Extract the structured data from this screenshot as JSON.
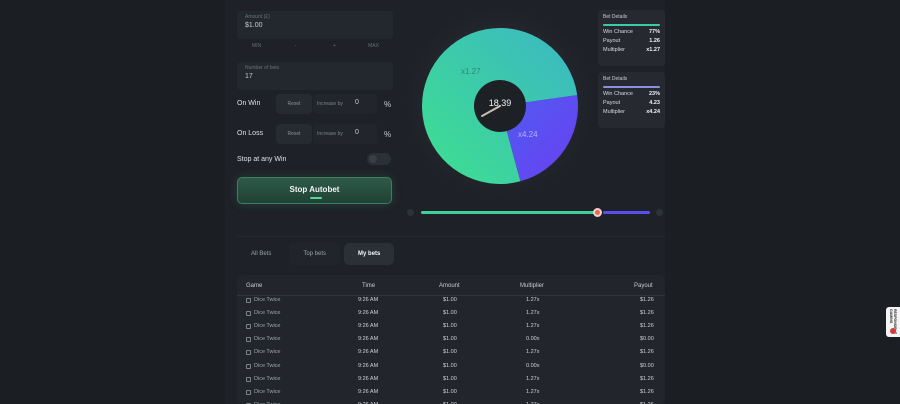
{
  "controls": {
    "bet_amount": {
      "label": "Amount (£)",
      "value": "$1.00"
    },
    "mini_buttons": [
      "MIN",
      "-",
      "+",
      "MAX"
    ],
    "number_of_bets": {
      "label": "Number of bets",
      "value": "17"
    },
    "on_win": {
      "label": "On Win",
      "reset_label": "Reset",
      "increase_label": "Increase by",
      "value": "0",
      "unit": "%"
    },
    "on_loss": {
      "label": "On Loss",
      "reset_label": "Reset",
      "increase_label": "Increase by",
      "value": "0",
      "unit": "%"
    },
    "stop_at_any_win": {
      "label": "Stop at any Win",
      "enabled": false
    },
    "stop_button_label": "Stop Autobet"
  },
  "pie": {
    "center_value": "18.39",
    "slices": [
      {
        "label": "x1.27",
        "fraction": 0.77,
        "color": "#3fd19a"
      },
      {
        "label": "x4.24",
        "fraction": 0.23,
        "color": "#5b4ef0"
      }
    ]
  },
  "bet_details": [
    {
      "title": "Bet Details",
      "accent": "#3fc9a8",
      "rows": [
        {
          "k": "Win Chance",
          "v": "77%"
        },
        {
          "k": "Payout",
          "v": "1.26"
        },
        {
          "k": "Multiplier",
          "v": "x1.27"
        }
      ]
    },
    {
      "title": "Bet Details",
      "accent": "#8a8fe0",
      "rows": [
        {
          "k": "Win Chance",
          "v": "23%"
        },
        {
          "k": "Payout",
          "v": "4.23"
        },
        {
          "k": "Multiplier",
          "v": "x4.24"
        }
      ]
    }
  ],
  "slider": {
    "value": 0.77,
    "left_color": "#3fd19a",
    "right_color": "#5b4ef0",
    "thumb_color": "#e96a57"
  },
  "tabs": [
    {
      "label": "All Bets",
      "active": false
    },
    {
      "label": "Top bets",
      "active": false
    },
    {
      "label": "My bets",
      "active": true
    }
  ],
  "table": {
    "columns": [
      "Game",
      "Time",
      "Amount",
      "Multiplier",
      "Payout"
    ],
    "rows": [
      {
        "game": "Dice Twice",
        "time": "9:26 AM",
        "amount": "$1.00",
        "multiplier": "1.27x",
        "payout": "$1.26"
      },
      {
        "game": "Dice Twice",
        "time": "9:26 AM",
        "amount": "$1.00",
        "multiplier": "1.27x",
        "payout": "$1.26"
      },
      {
        "game": "Dice Twice",
        "time": "9:26 AM",
        "amount": "$1.00",
        "multiplier": "1.27x",
        "payout": "$1.26"
      },
      {
        "game": "Dice Twice",
        "time": "9:26 AM",
        "amount": "$1.00",
        "multiplier": "0.00x",
        "payout": "$0.00"
      },
      {
        "game": "Dice Twice",
        "time": "9:26 AM",
        "amount": "$1.00",
        "multiplier": "1.27x",
        "payout": "$1.26"
      },
      {
        "game": "Dice Twice",
        "time": "9:26 AM",
        "amount": "$1.00",
        "multiplier": "0.00x",
        "payout": "$0.00"
      },
      {
        "game": "Dice Twice",
        "time": "9:26 AM",
        "amount": "$1.00",
        "multiplier": "1.27x",
        "payout": "$1.26"
      },
      {
        "game": "Dice Twice",
        "time": "9:26 AM",
        "amount": "$1.00",
        "multiplier": "1.27x",
        "payout": "$1.26"
      },
      {
        "game": "Dice Twice",
        "time": "9:26 AM",
        "amount": "$1.00",
        "multiplier": "1.27x",
        "payout": "$1.26"
      }
    ]
  },
  "side_widget": {
    "text": "RESPONSIBLE GAMING"
  }
}
